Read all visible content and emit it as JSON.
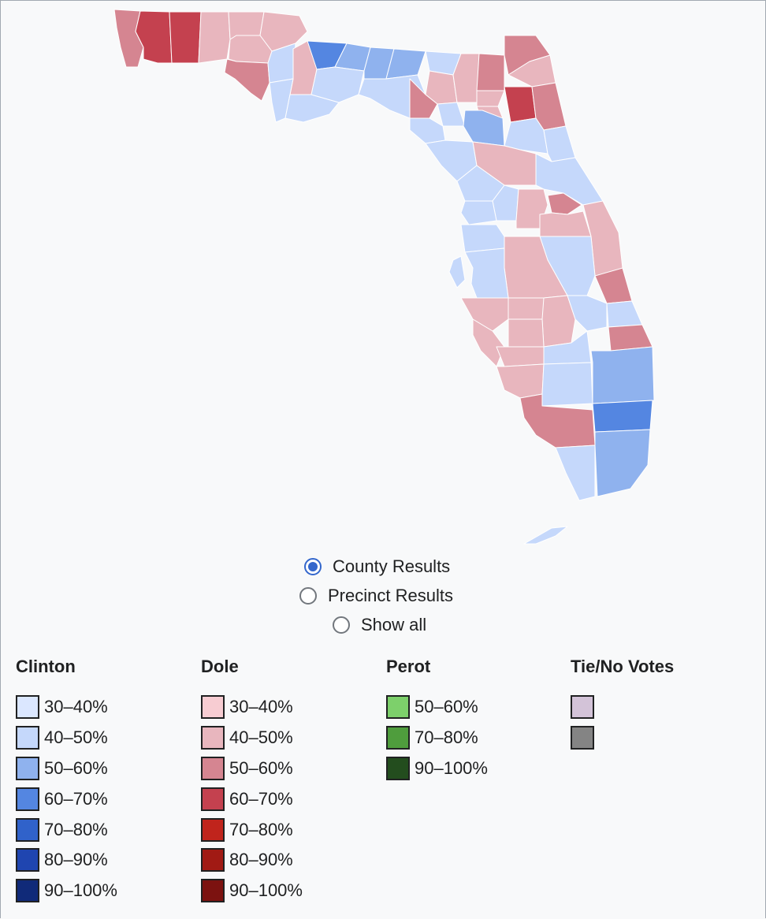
{
  "colors": {
    "clinton_30_40": "#dbe7ff",
    "clinton_40_50": "#c5d8fb",
    "clinton_50_60": "#8fb2ee",
    "clinton_60_70": "#5486e1",
    "dole_30_40": "#f7ccd2",
    "dole_40_50": "#e8b6be",
    "dole_50_60": "#d58591",
    "dole_60_70": "#c4414f"
  },
  "radio": {
    "options": [
      {
        "label": "County Results",
        "selected": true
      },
      {
        "label": "Precinct Results",
        "selected": false
      },
      {
        "label": "Show all",
        "selected": false
      }
    ]
  },
  "legend": {
    "clinton": {
      "title": "Clinton",
      "items": [
        {
          "label": "30–40%",
          "color": "#dbe7ff"
        },
        {
          "label": "40–50%",
          "color": "#c5d8fb"
        },
        {
          "label": "50–60%",
          "color": "#8fb2ee"
        },
        {
          "label": "60–70%",
          "color": "#5486e1"
        },
        {
          "label": "70–80%",
          "color": "#3062ca"
        },
        {
          "label": "80–90%",
          "color": "#1f45b0"
        },
        {
          "label": "90–100%",
          "color": "#102a79"
        }
      ]
    },
    "dole": {
      "title": "Dole",
      "items": [
        {
          "label": "30–40%",
          "color": "#f7ccd2"
        },
        {
          "label": "40–50%",
          "color": "#e8b6be"
        },
        {
          "label": "50–60%",
          "color": "#d58591"
        },
        {
          "label": "60–70%",
          "color": "#c4414f"
        },
        {
          "label": "70–80%",
          "color": "#c0241c"
        },
        {
          "label": "80–90%",
          "color": "#a11a14"
        },
        {
          "label": "90–100%",
          "color": "#7c1210"
        }
      ]
    },
    "perot": {
      "title": "Perot",
      "items": [
        {
          "label": "50–60%",
          "color": "#7dd06b"
        },
        {
          "label": "70–80%",
          "color": "#4f9d3d"
        },
        {
          "label": "90–100%",
          "color": "#234d1e"
        }
      ]
    },
    "tie": {
      "title": "Tie/No Votes",
      "items": [
        {
          "label": "",
          "color": "#d3c3d8"
        },
        {
          "label": "",
          "color": "#848484"
        }
      ]
    }
  }
}
